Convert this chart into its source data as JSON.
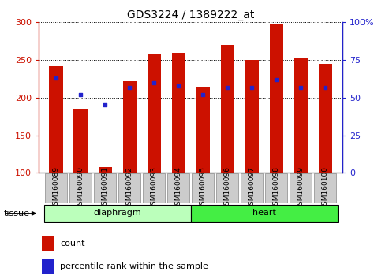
{
  "title": "GDS3224 / 1389222_at",
  "samples": [
    "GSM160089",
    "GSM160090",
    "GSM160091",
    "GSM160092",
    "GSM160093",
    "GSM160094",
    "GSM160095",
    "GSM160096",
    "GSM160097",
    "GSM160098",
    "GSM160099",
    "GSM160100"
  ],
  "count_values": [
    242,
    185,
    108,
    222,
    257,
    260,
    215,
    270,
    250,
    298,
    252,
    245
  ],
  "percentile_values": [
    63,
    52,
    45,
    57,
    60,
    58,
    52,
    57,
    57,
    62,
    57,
    57
  ],
  "base": 100,
  "ylim_left": [
    100,
    300
  ],
  "ylim_right": [
    0,
    100
  ],
  "yticks_left": [
    100,
    150,
    200,
    250,
    300
  ],
  "yticks_right": [
    0,
    25,
    50,
    75,
    100
  ],
  "bar_color": "#cc1100",
  "dot_color": "#2222cc",
  "tissue_groups": [
    {
      "label": "diaphragm",
      "start": 0,
      "end": 5,
      "color": "#bbffbb"
    },
    {
      "label": "heart",
      "start": 6,
      "end": 11,
      "color": "#44ee44"
    }
  ],
  "tissue_label": "tissue",
  "legend_count_label": "count",
  "legend_pct_label": "percentile rank within the sample",
  "bar_width": 0.55,
  "tick_label_fontsize": 6.5,
  "title_fontsize": 10,
  "left_axis_color": "#cc1100",
  "right_axis_color": "#2222cc",
  "plot_bg": "#ffffff",
  "sample_box_color": "#cccccc",
  "sample_box_edge": "#888888"
}
